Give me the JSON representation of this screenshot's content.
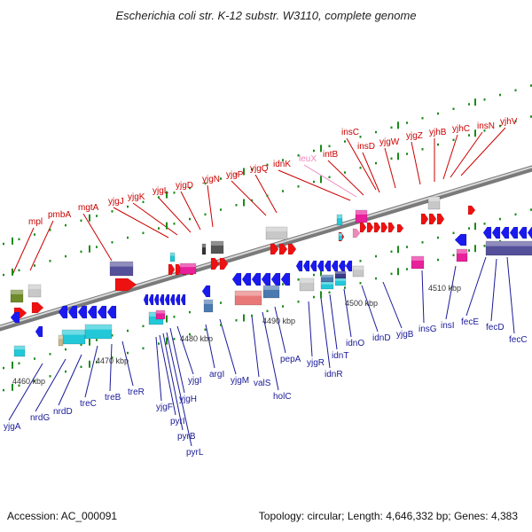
{
  "title": "Escherichia coli str. K-12 substr. W3110, complete genome",
  "accession": "Accession: AC_000091",
  "summary": "Topology: circular; Length: 4,646,332 bp; Genes: 4,383",
  "colors": {
    "backbone": "#999999",
    "tick": "#1a8a1a",
    "gene_blue": "#1a1aee",
    "gene_red": "#ee1111",
    "label_red": "#cc0000",
    "label_blue": "#1a1a99",
    "label_pink": "#ee88bb",
    "cyan": "#22c8d8",
    "purple": "#55509a",
    "magenta": "#e8209a",
    "olive": "#6e8a2a",
    "gray": "#c8c8c8",
    "salmon": "#e87878",
    "steel": "#4a7ab0",
    "tan": "#c8b88a"
  },
  "scale_labels": [
    "4460 kbp",
    "4470 kbp",
    "4480 kbp",
    "4490 kbp",
    "4500 kbp",
    "4510 kbp"
  ],
  "top_genes": [
    "mpl",
    "pmbA",
    "mgtA",
    "yjgJ",
    "yjgK",
    "yjgL",
    "yjgD",
    "yjgN",
    "yjgP",
    "yjgQ",
    "idnK",
    "leuX",
    "intB",
    "insC",
    "insD",
    "yjgW",
    "yjgZ",
    "yjhB",
    "yjhC",
    "insN",
    "yjhV"
  ],
  "bottom_genes": [
    "yjgA",
    "nrdG",
    "nrdD",
    "treC",
    "treB",
    "treR",
    "yjgF",
    "pyrI",
    "pyrB",
    "pyrL",
    "yjgH",
    "yjgI",
    "argI",
    "yjgM",
    "valS",
    "holC",
    "pepA",
    "yjgR",
    "idnR",
    "idnT",
    "idnO",
    "idnD",
    "yjgB",
    "insG",
    "insI",
    "fecE",
    "fecD",
    "fecC"
  ]
}
